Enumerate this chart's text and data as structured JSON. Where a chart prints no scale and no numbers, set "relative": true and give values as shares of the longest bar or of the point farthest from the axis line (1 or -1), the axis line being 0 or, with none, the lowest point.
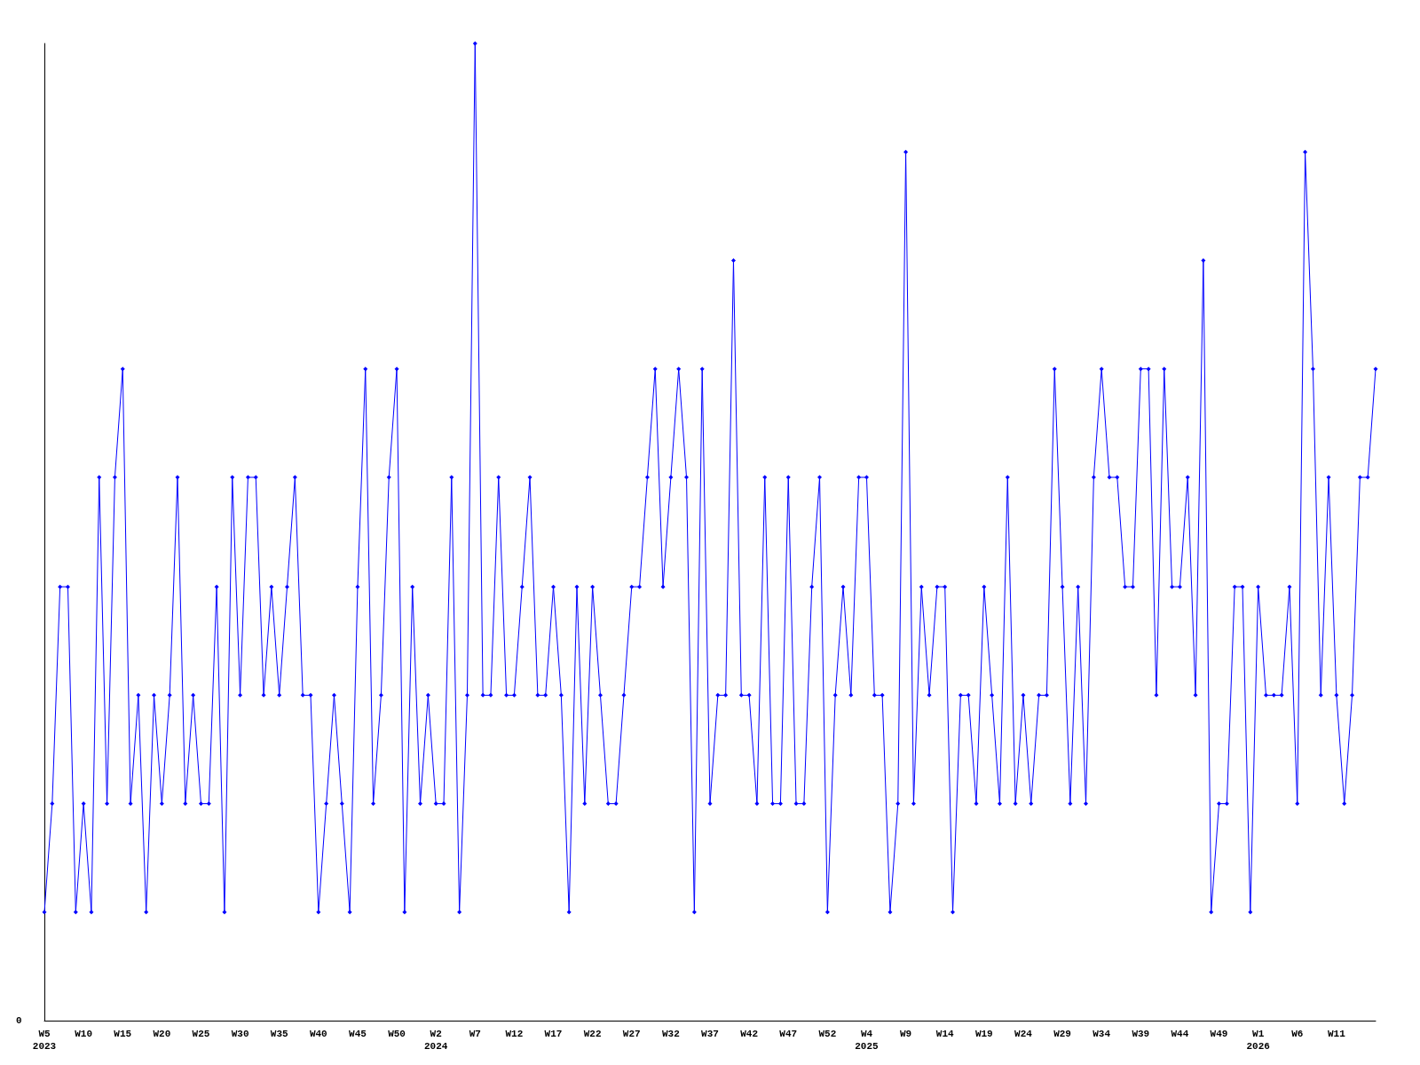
{
  "chart_data": {
    "type": "line",
    "relative": true,
    "color": "#0000ff",
    "marker": "diamond",
    "grid": false,
    "annotations": [
      "0"
    ],
    "categories": [
      "W5\n2023",
      null,
      null,
      null,
      null,
      "W10",
      null,
      null,
      null,
      null,
      "W15",
      null,
      null,
      null,
      null,
      "W20",
      null,
      null,
      null,
      null,
      "W25",
      null,
      null,
      null,
      null,
      "W30",
      null,
      null,
      null,
      null,
      "W35",
      null,
      null,
      null,
      null,
      "W40",
      null,
      null,
      null,
      null,
      "W45",
      null,
      null,
      null,
      null,
      "W50",
      null,
      null,
      null,
      null,
      "W2\n2024",
      null,
      null,
      null,
      null,
      "W7",
      null,
      null,
      null,
      null,
      "W12",
      null,
      null,
      null,
      null,
      "W17",
      null,
      null,
      null,
      null,
      "W22",
      null,
      null,
      null,
      null,
      "W27",
      null,
      null,
      null,
      null,
      "W32",
      null,
      null,
      null,
      null,
      "W37",
      null,
      null,
      null,
      null,
      "W42",
      null,
      null,
      null,
      null,
      "W47",
      null,
      null,
      null,
      null,
      "W52",
      null,
      null,
      null,
      null,
      "W4\n2025",
      null,
      null,
      null,
      null,
      "W9",
      null,
      null,
      null,
      null,
      "W14",
      null,
      null,
      null,
      null,
      "W19",
      null,
      null,
      null,
      null,
      "W24",
      null,
      null,
      null,
      null,
      "W29",
      null,
      null,
      null,
      null,
      "W34",
      null,
      null,
      null,
      null,
      "W39",
      null,
      null,
      null,
      null,
      "W44",
      null,
      null,
      null,
      null,
      "W49",
      null,
      null,
      null,
      null,
      "W1\n2026",
      null,
      null,
      null,
      null,
      "W6",
      null,
      null,
      null,
      null,
      "W11",
      null,
      null,
      null,
      null,
      null
    ],
    "values": [
      0.111,
      0.222,
      0.444,
      0.444,
      0.111,
      0.222,
      0.111,
      0.556,
      0.222,
      0.556,
      0.667,
      0.222,
      0.333,
      0.111,
      0.333,
      0.222,
      0.333,
      0.556,
      0.222,
      0.333,
      0.222,
      0.222,
      0.444,
      0.111,
      0.556,
      0.333,
      0.556,
      0.556,
      0.333,
      0.444,
      0.333,
      0.444,
      0.556,
      0.333,
      0.333,
      0.111,
      0.222,
      0.333,
      0.222,
      0.111,
      0.444,
      0.667,
      0.222,
      0.333,
      0.556,
      0.667,
      0.111,
      0.444,
      0.222,
      0.333,
      0.222,
      0.222,
      0.556,
      0.111,
      0.333,
      1,
      0.333,
      0.333,
      0.556,
      0.333,
      0.333,
      0.444,
      0.556,
      0.333,
      0.333,
      0.444,
      0.333,
      0.111,
      0.444,
      0.222,
      0.444,
      0.333,
      0.222,
      0.222,
      0.333,
      0.444,
      0.444,
      0.556,
      0.667,
      0.444,
      0.556,
      0.667,
      0.556,
      0.111,
      0.667,
      0.222,
      0.333,
      0.333,
      0.778,
      0.333,
      0.333,
      0.222,
      0.556,
      0.222,
      0.222,
      0.556,
      0.222,
      0.222,
      0.444,
      0.556,
      0.111,
      0.333,
      0.444,
      0.333,
      0.556,
      0.556,
      0.333,
      0.333,
      0.111,
      0.222,
      0.889,
      0.222,
      0.444,
      0.333,
      0.444,
      0.444,
      0.111,
      0.333,
      0.333,
      0.222,
      0.444,
      0.333,
      0.222,
      0.556,
      0.222,
      0.333,
      0.222,
      0.333,
      0.333,
      0.667,
      0.444,
      0.222,
      0.444,
      0.222,
      0.556,
      0.667,
      0.556,
      0.556,
      0.444,
      0.444,
      0.667,
      0.667,
      0.333,
      0.667,
      0.444,
      0.444,
      0.556,
      0.333,
      0.778,
      0.111,
      0.222,
      0.222,
      0.444,
      0.444,
      0.111,
      0.444,
      0.333,
      0.333,
      0.333,
      0.444,
      0.222,
      0.889,
      0.667,
      0.333,
      0.556,
      0.333,
      0.222,
      0.333,
      0.556,
      0.556,
      0.667
    ]
  }
}
